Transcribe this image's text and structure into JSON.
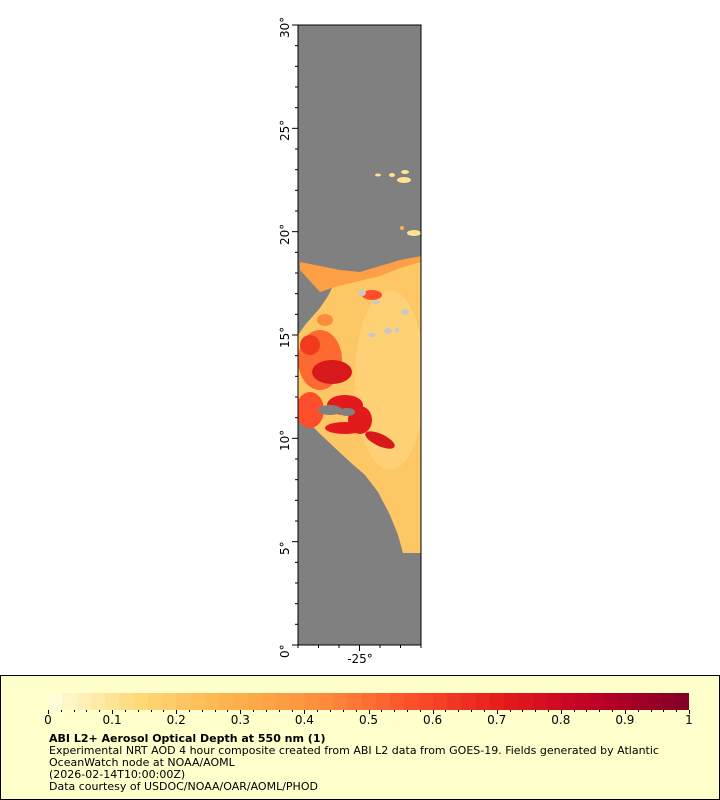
{
  "map": {
    "lat_range": [
      0,
      30
    ],
    "lon_range": [
      -28,
      -22
    ],
    "y_ticks": [
      "0°",
      "5°",
      "10°",
      "15°",
      "20°",
      "25°",
      "30°"
    ],
    "x_ticks": [
      "-25°"
    ],
    "land_color": "#808080",
    "missing_color": "#c8c8c8"
  },
  "legend": {
    "colorbar_range": [
      0,
      1
    ],
    "colorbar_ticks": [
      "0",
      "0.1",
      "0.2",
      "0.3",
      "0.4",
      "0.5",
      "0.6",
      "0.7",
      "0.8",
      "0.9",
      "1"
    ],
    "colors": [
      "#ffffe0",
      "#fed976",
      "#feb24c",
      "#fd8d3c",
      "#fc4e2a",
      "#e31a1c",
      "#bd0026",
      "#800026"
    ],
    "background": "#ffffcc",
    "title": "ABI L2+ Aerosol Optical Depth at 550 nm (1)",
    "description_line1": "Experimental NRT AOD 4 hour composite created from ABI L2 data from GOES-19. Fields generated by Atlantic",
    "description_line2": "OceanWatch node at NOAA/AOML",
    "time": "(2026-02-14T10:00:00Z)",
    "credit": "Data courtesy of USDOC/NOAA/OAR/AOML/PHOD"
  }
}
